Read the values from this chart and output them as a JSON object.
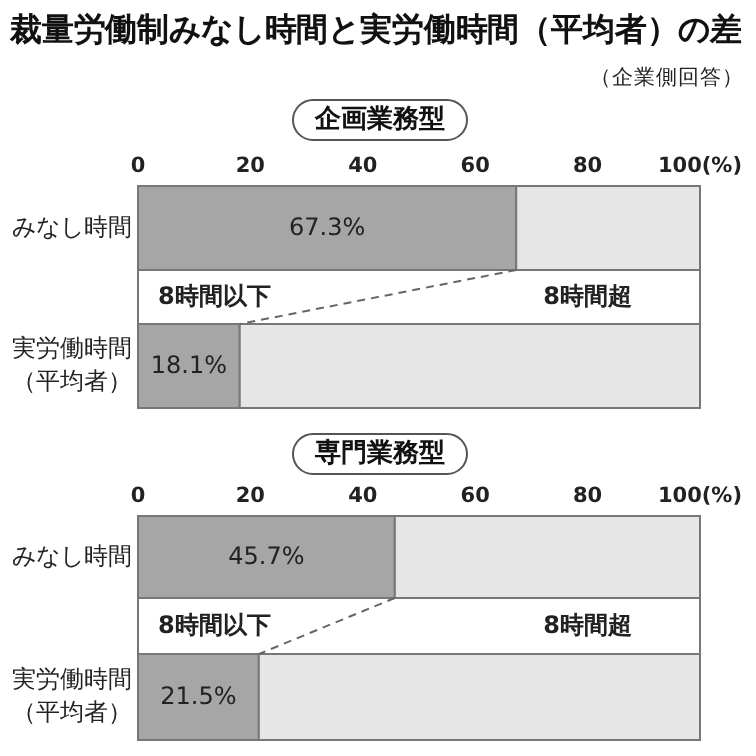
{
  "chart_data": [
    {
      "type": "bar",
      "orientation": "horizontal",
      "stacked": true,
      "title": "裁量労働制みなし時間と実労働時間（平均者）の差",
      "subtitle": "企画業務型",
      "annotations": [
        "（企業側回答）"
      ],
      "categories": [
        "みなし時間",
        "実労働時間（平均者）"
      ],
      "series": [
        {
          "name": "8時間以下",
          "color": "#a6a6a6",
          "values": [
            67.3,
            18.1
          ],
          "value_labels": [
            "67.3%",
            "18.1%"
          ]
        },
        {
          "name": "8時間超",
          "color": "#e6e6e6",
          "values": [
            32.7,
            81.9
          ]
        }
      ],
      "xlim": [
        0,
        100
      ],
      "xticks": [
        0,
        20,
        40,
        60,
        80,
        {
          "value": 100,
          "label": "100(%)"
        }
      ]
    },
    {
      "type": "bar",
      "orientation": "horizontal",
      "stacked": true,
      "subtitle": "専門業務型",
      "categories": [
        "みなし時間",
        "実労働時間（平均者）"
      ],
      "series": [
        {
          "name": "8時間以下",
          "color": "#a6a6a6",
          "values": [
            45.7,
            21.5
          ],
          "value_labels": [
            "45.7%",
            "21.5%"
          ]
        },
        {
          "name": "8時間超",
          "color": "#e6e6e6",
          "values": [
            54.3,
            78.5
          ]
        }
      ],
      "xlim": [
        0,
        100
      ],
      "xticks": [
        0,
        20,
        40,
        60,
        80,
        {
          "value": 100,
          "label": "100(%)"
        }
      ]
    }
  ]
}
